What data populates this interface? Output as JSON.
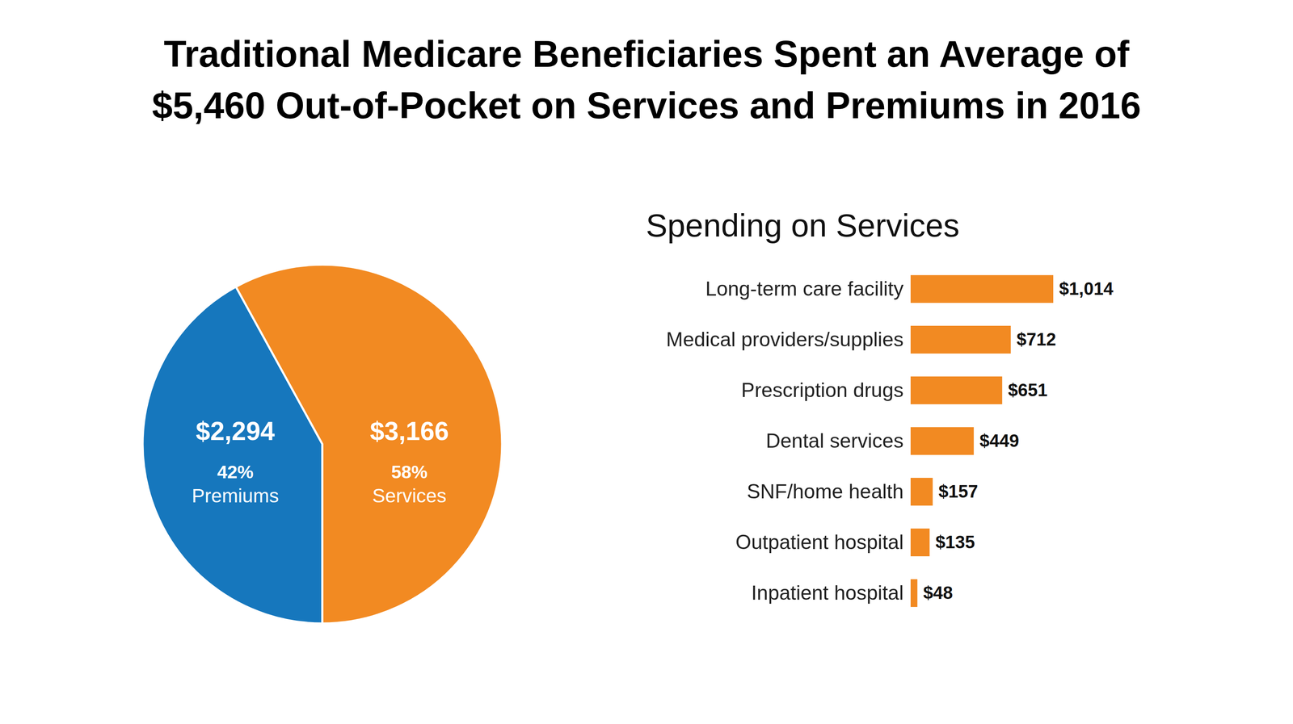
{
  "title": "Traditional Medicare Beneficiaries Spent an Average of\n$5,460 Out-of-Pocket on Services and Premiums in 2016",
  "chart_data": [
    {
      "type": "pie",
      "categories": [
        "Premiums",
        "Services"
      ],
      "values": [
        2294,
        3166
      ],
      "value_labels": [
        "$2,294",
        "$3,166"
      ],
      "percentages": [
        42,
        58
      ],
      "percentage_labels": [
        "42%",
        "58%"
      ],
      "colors": [
        "#1677bd",
        "#f28a22"
      ],
      "data_labels": true
    },
    {
      "type": "bar",
      "title": "Spending on Services",
      "orientation": "horizontal",
      "categories": [
        "Long-term care facility",
        "Medical providers/supplies",
        "Prescription drugs",
        "Dental services",
        "SNF/home health",
        "Outpatient hospital",
        "Inpatient hospital"
      ],
      "values": [
        1014,
        712,
        651,
        449,
        157,
        135,
        48
      ],
      "value_labels": [
        "$1,014",
        "$712",
        "$651",
        "$449",
        "$157",
        "$135",
        "$48"
      ],
      "color": "#f28a22",
      "data_labels": true,
      "tick_labels": "y"
    }
  ]
}
